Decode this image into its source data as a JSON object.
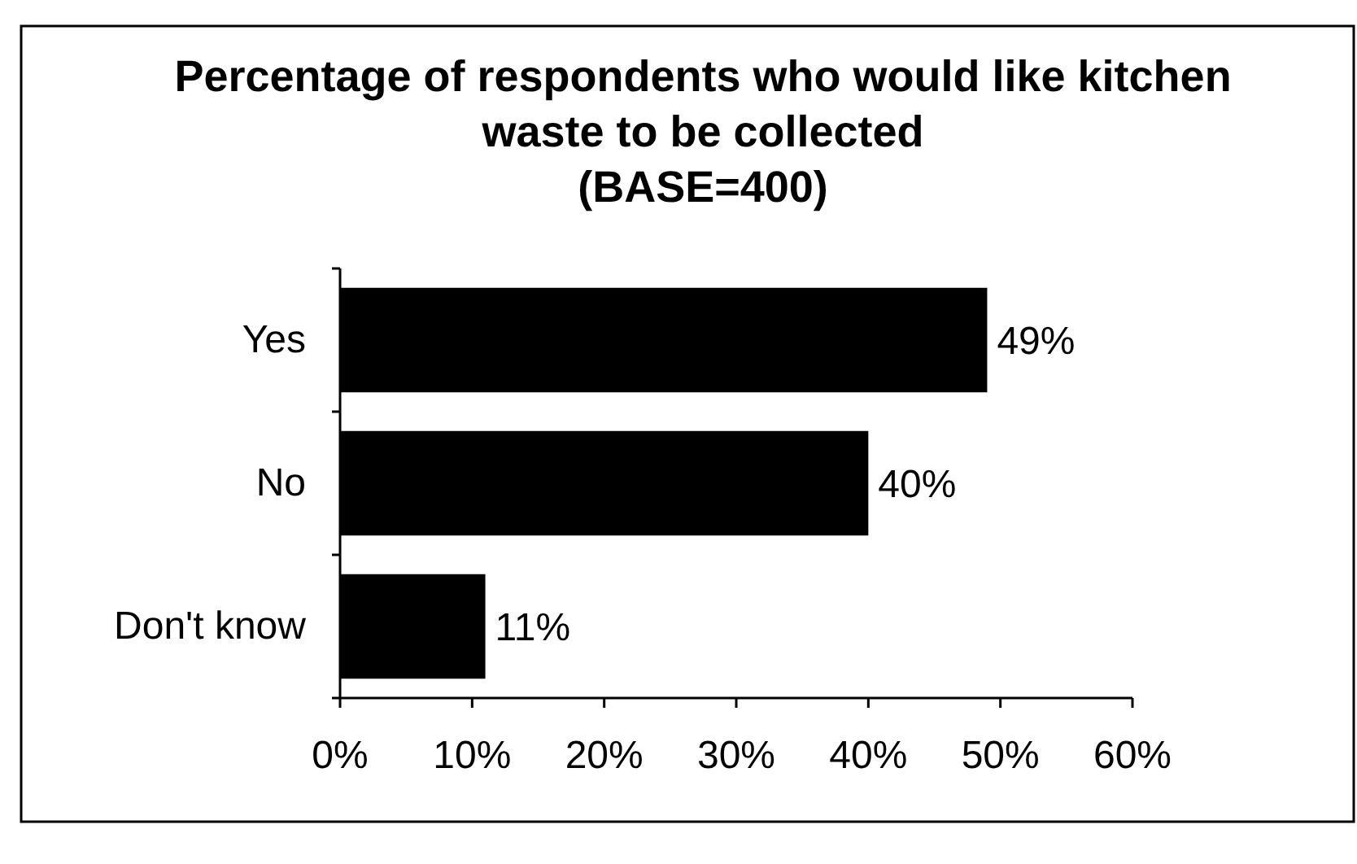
{
  "chart_data": {
    "type": "bar",
    "orientation": "horizontal",
    "title": "Percentage of respondents who would like kitchen\nwaste to be collected\n(BASE=400)",
    "categories": [
      "Yes",
      "No",
      "Don't know"
    ],
    "values": [
      49,
      40,
      11
    ],
    "value_labels": [
      "49%",
      "40%",
      "11%"
    ],
    "color": "#000000",
    "xlim": [
      0,
      60
    ],
    "xticks": [
      {
        "value": 0,
        "label": "0%"
      },
      {
        "value": 10,
        "label": "10%"
      },
      {
        "value": 20,
        "label": "20%"
      },
      {
        "value": 30,
        "label": "30%"
      },
      {
        "value": 40,
        "label": "40%"
      },
      {
        "value": 50,
        "label": "50%"
      },
      {
        "value": 60,
        "label": "60%"
      }
    ],
    "grid": false
  }
}
